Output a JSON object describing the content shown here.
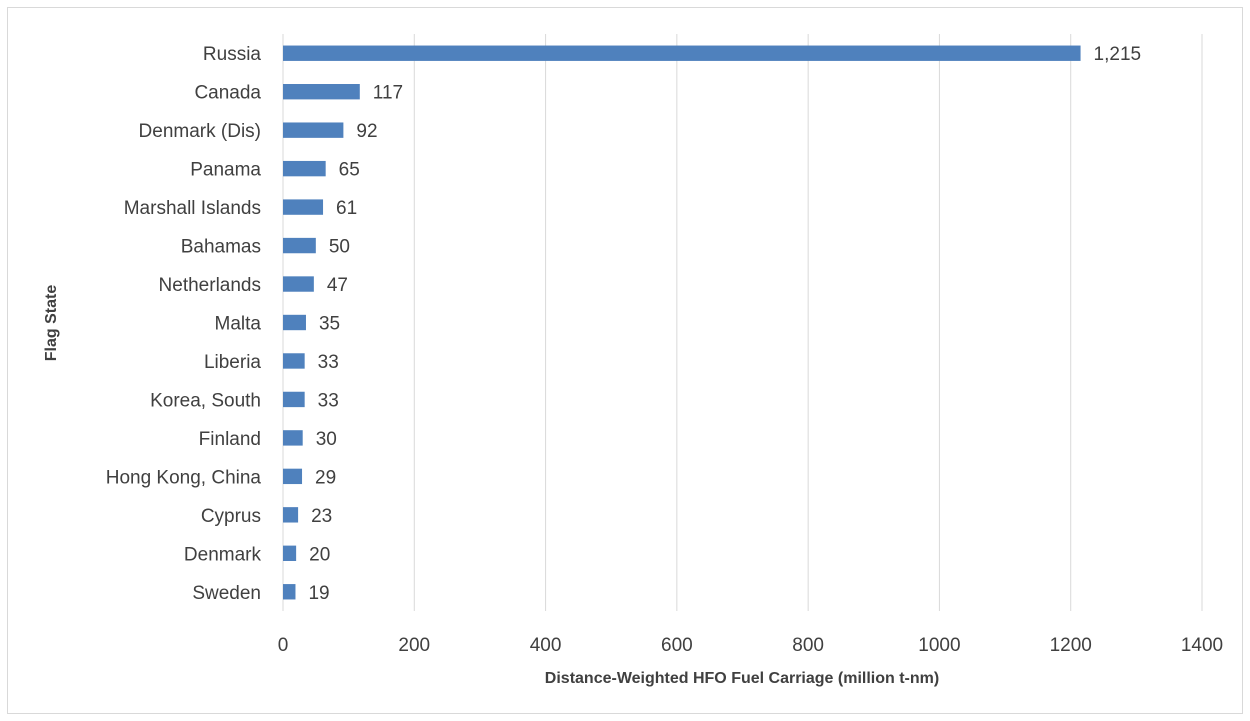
{
  "chart_data": {
    "type": "bar",
    "orientation": "horizontal",
    "title": "",
    "xlabel": "Distance-Weighted HFO Fuel Carriage (million t-nm)",
    "ylabel": "Flag State",
    "xlim": [
      0,
      1400
    ],
    "xticks": [
      0,
      200,
      400,
      600,
      800,
      1000,
      1200,
      1400
    ],
    "grid": "vertical",
    "bar_color": "#4f81bd",
    "categories": [
      "Russia",
      "Canada",
      "Denmark (Dis)",
      "Panama",
      "Marshall Islands",
      "Bahamas",
      "Netherlands",
      "Malta",
      "Liberia",
      "Korea, South",
      "Finland",
      "Hong Kong, China",
      "Cyprus",
      "Denmark",
      "Sweden"
    ],
    "values": [
      1215,
      117,
      92,
      65,
      61,
      50,
      47,
      35,
      33,
      33,
      30,
      29,
      23,
      20,
      19
    ],
    "value_labels": [
      "1,215",
      "117",
      "92",
      "65",
      "61",
      "50",
      "47",
      "35",
      "33",
      "33",
      "30",
      "29",
      "23",
      "20",
      "19"
    ]
  }
}
